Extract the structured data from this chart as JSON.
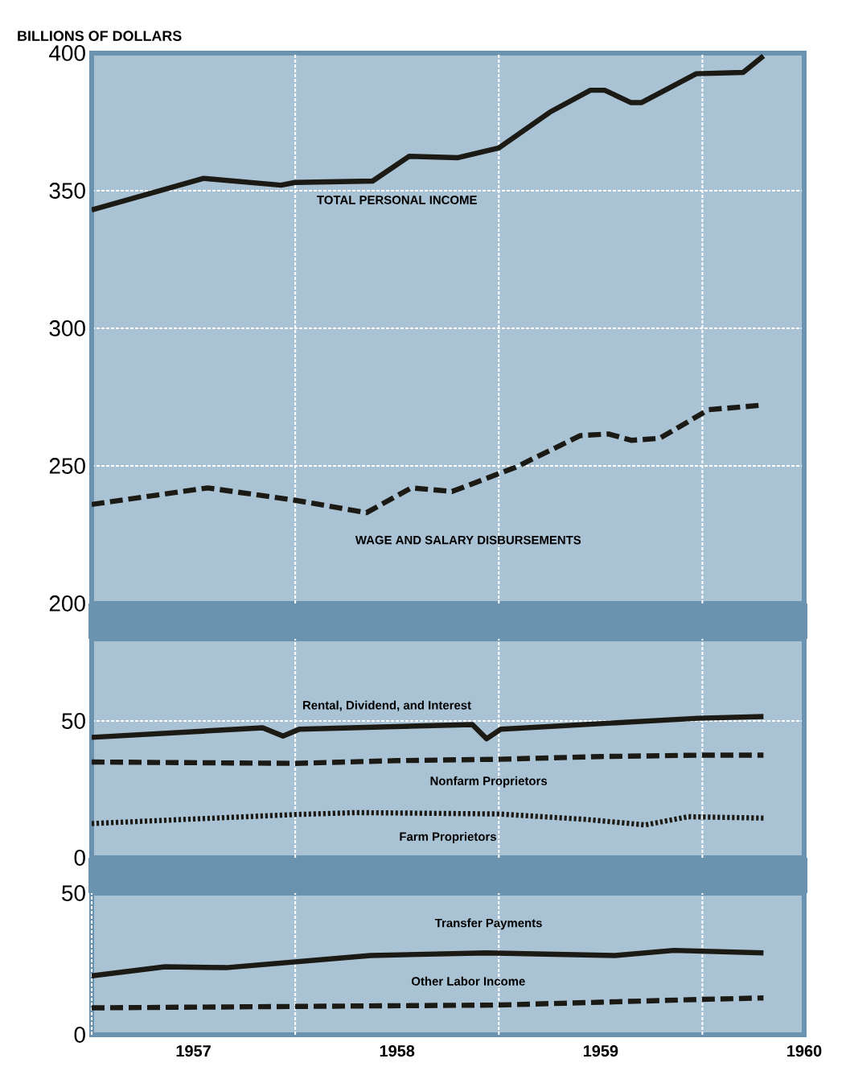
{
  "chart_data": [
    {
      "type": "line",
      "ylabel": "BILLIONS OF DOLLARS",
      "xlim": [
        1957,
        1960.5
      ],
      "ylim": [
        200,
        400
      ],
      "yticks": [
        200,
        250,
        300,
        350,
        400
      ],
      "xticks": [
        {
          "value": 1958,
          "label": null
        },
        {
          "value": 1959,
          "label": null
        },
        {
          "value": 1960,
          "label": null
        }
      ],
      "grid": true,
      "tick_labels": "y",
      "series": [
        {
          "name": "TOTAL PERSONAL INCOME",
          "color": "#1c1a14",
          "line_style": "solid",
          "x": [
            1957.0,
            1957.55,
            1957.93,
            1958.0,
            1958.38,
            1958.56,
            1958.8,
            1959.0,
            1959.25,
            1959.45,
            1959.52,
            1959.65,
            1959.7,
            1959.97,
            1960.2,
            1960.3
          ],
          "values": [
            343,
            354.5,
            352,
            353,
            353.5,
            362.5,
            362,
            365.5,
            378.5,
            386.5,
            386.5,
            382,
            382,
            392.5,
            393,
            399
          ]
        },
        {
          "name": "WAGE AND SALARY DISBURSEMENTS",
          "color": "#1c1a14",
          "line_style": "dashed",
          "x": [
            1957.0,
            1957.57,
            1958.0,
            1958.35,
            1958.57,
            1958.77,
            1959.08,
            1959.4,
            1959.54,
            1959.65,
            1959.79,
            1960.03,
            1960.28
          ],
          "values": [
            236,
            242,
            237.5,
            233,
            242,
            240.7,
            249.4,
            261,
            261.6,
            259.3,
            260,
            270.4,
            272
          ]
        }
      ]
    },
    {
      "type": "line",
      "xlim": [
        1957,
        1960.5
      ],
      "ylim": [
        0,
        80
      ],
      "yticks": [
        0,
        50
      ],
      "xticks": [
        {
          "value": 1958,
          "label": null
        },
        {
          "value": 1959,
          "label": null
        },
        {
          "value": 1960,
          "label": null
        }
      ],
      "grid": true,
      "tick_labels": "y",
      "series": [
        {
          "name": "Rental, Dividend, and Interest",
          "color": "#1c1a14",
          "line_style": "solid",
          "x": [
            1957.0,
            1957.84,
            1957.94,
            1958.02,
            1958.87,
            1958.94,
            1959.01,
            1959.98,
            1960.3
          ],
          "values": [
            44,
            47.5,
            44.5,
            47,
            48.7,
            43.5,
            47,
            51,
            51.6
          ]
        },
        {
          "name": "Nonfarm Proprietors",
          "color": "#1c1a14",
          "line_style": "dashed",
          "x": [
            1957.0,
            1958.0,
            1958.5,
            1959.0,
            1959.5,
            1960.0,
            1960.3
          ],
          "values": [
            35,
            34.5,
            35.5,
            36,
            37,
            37.5,
            37.5
          ]
        },
        {
          "name": "Farm Proprietors",
          "color": "#1c1a14",
          "line_style": "dotted",
          "x": [
            1957.0,
            1957.3,
            1958.0,
            1958.3,
            1959.0,
            1959.43,
            1959.72,
            1959.93,
            1960.3
          ],
          "values": [
            12.5,
            13.5,
            15.8,
            16.5,
            16,
            14,
            12,
            15,
            14.5
          ]
        }
      ]
    },
    {
      "type": "line",
      "xlim": [
        1957,
        1960.5
      ],
      "ylim": [
        0,
        50
      ],
      "yticks": [
        0,
        50
      ],
      "xticks": [
        {
          "value": 1957,
          "label": null
        },
        {
          "value": 1957.5,
          "label": "1957"
        },
        {
          "value": 1958,
          "label": null
        },
        {
          "value": 1958.5,
          "label": "1958"
        },
        {
          "value": 1959,
          "label": null
        },
        {
          "value": 1959.5,
          "label": "1959"
        },
        {
          "value": 1960,
          "label": null
        },
        {
          "value": 1960.5,
          "label": "1960"
        }
      ],
      "grid": true,
      "series": [
        {
          "name": "Transfer Payments",
          "color": "#1c1a14",
          "line_style": "solid",
          "x": [
            1957.0,
            1957.36,
            1957.66,
            1958.37,
            1958.94,
            1959.57,
            1959.86,
            1960.3
          ],
          "values": [
            20.8,
            24,
            23.7,
            28,
            28.9,
            28,
            29.8,
            28.9
          ]
        },
        {
          "name": "Other Labor Income",
          "color": "#1c1a14",
          "line_style": "dashed",
          "x": [
            1957.0,
            1958.0,
            1959.0,
            1959.5,
            1960.0,
            1960.3
          ],
          "values": [
            9.5,
            10,
            10.5,
            11.5,
            12.5,
            13
          ]
        }
      ]
    }
  ]
}
